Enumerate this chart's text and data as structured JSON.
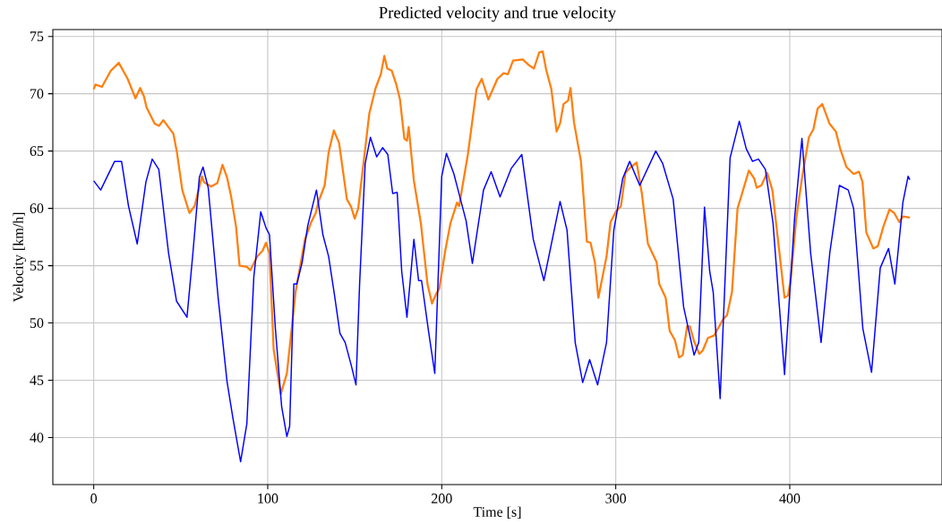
{
  "chart_data": {
    "type": "line",
    "title": "Predicted velocity and true velocity",
    "xlabel": "Time [s]",
    "ylabel": "Velocity [km/h]",
    "xlim": [
      -23.5,
      487.5
    ],
    "ylim": [
      35.9,
      75.6
    ],
    "xticks": [
      0,
      100,
      200,
      300,
      400
    ],
    "yticks": [
      40,
      45,
      50,
      55,
      60,
      65,
      70,
      75
    ],
    "grid": true,
    "series": [
      {
        "color": "#ff7f0e",
        "x": [
          0,
          1,
          4.7,
          9.8,
          14.4,
          19.5,
          24,
          26.7,
          28.8,
          30.4,
          35,
          37.5,
          40,
          45.8,
          47.8,
          50.9,
          55,
          58,
          62.2,
          63.3,
          67.4,
          71,
          74,
          76.6,
          79,
          81.8,
          83.8,
          88,
          90,
          94,
          97,
          99,
          101,
          103.4,
          107.5,
          111,
          116,
          121.4,
          125,
          127.6,
          129,
          132.7,
          135,
          138,
          141,
          145.5,
          148,
          150,
          152,
          155,
          158.4,
          162,
          165,
          167,
          168.7,
          171.3,
          173.9,
          176,
          178.5,
          180,
          181,
          184,
          188,
          191.8,
          194.4,
          197,
          198.6,
          202,
          205,
          208.8,
          210,
          215,
          220,
          223,
          226.8,
          232,
          235.6,
          238,
          241,
          246.5,
          250,
          253,
          256,
          258,
          260,
          263,
          266,
          268,
          270,
          272.6,
          274,
          276,
          280,
          283.4,
          285.5,
          288,
          290,
          294.7,
          297,
          300,
          303,
          305.6,
          308,
          312,
          315,
          318.5,
          323.5,
          325,
          328.7,
          331,
          334,
          336.4,
          338.5,
          341,
          342.6,
          345,
          348,
          350,
          353,
          356.5,
          361.6,
          364,
          366.8,
          370,
          372.4,
          376.5,
          379.6,
          381,
          383.7,
          387,
          390,
          392,
          397,
          399,
          400.7,
          403.8,
          407,
          411,
          413.6,
          416,
          418.7,
          422.8,
          426.5,
          429,
          432.6,
          436.7,
          439.8,
          441.8,
          444,
          448,
          450.6,
          454,
          457.3,
          460,
          463,
          465,
          469
        ],
        "values": [
          70.4,
          70.8,
          70.6,
          72,
          72.7,
          71.3,
          69.6,
          70.5,
          69.8,
          68.8,
          67.4,
          67.2,
          67.7,
          66.5,
          64.9,
          61.6,
          59.6,
          60.2,
          62.8,
          62.3,
          61.9,
          62.2,
          63.8,
          62.7,
          61,
          58.4,
          55,
          54.9,
          54.6,
          55.8,
          56.3,
          57,
          56.1,
          47.7,
          43.8,
          45.6,
          52.7,
          57.3,
          58.8,
          59.6,
          60.5,
          62,
          64.9,
          66.8,
          65.7,
          60.8,
          60.1,
          59.1,
          60,
          63.9,
          68.3,
          70.5,
          71.7,
          73.3,
          72.2,
          72,
          70.8,
          69.5,
          66.1,
          65.9,
          67.1,
          62.4,
          58.7,
          53.4,
          51.7,
          52.6,
          53,
          56.3,
          58.7,
          60.5,
          60.2,
          64.7,
          70.4,
          71.3,
          69.5,
          71.3,
          71.8,
          71.7,
          72.9,
          73,
          72.5,
          72.2,
          73.6,
          73.7,
          72.1,
          70.4,
          66.7,
          67.4,
          69.1,
          69.4,
          70.5,
          67.5,
          64.1,
          57.1,
          57,
          55.3,
          52.2,
          55.8,
          58.8,
          59.7,
          60.2,
          63.1,
          63.5,
          64,
          61.3,
          56.9,
          55.3,
          53.4,
          52.2,
          49.3,
          48.5,
          47,
          47.2,
          49.7,
          49.7,
          48.4,
          47.3,
          47.6,
          48.7,
          48.9,
          50.3,
          50.7,
          52.7,
          60,
          61.2,
          63.3,
          62.6,
          61.8,
          62,
          63.1,
          61.6,
          58.9,
          52.2,
          52.4,
          54,
          59.2,
          62.6,
          66.2,
          66.9,
          68.7,
          69.1,
          67.4,
          66.7,
          65.2,
          63.6,
          63,
          63.2,
          62.3,
          57.9,
          56.5,
          56.7,
          58.5,
          59.9,
          59.6,
          58.8,
          59.3,
          59.2
        ]
      },
      {
        "color": "#0000ff",
        "x": [
          0,
          4,
          12,
          16,
          20,
          25,
          30,
          33.6,
          37.4,
          43,
          47.6,
          53.6,
          57,
          60.7,
          62.8,
          65.8,
          71.5,
          76.6,
          80,
          84.4,
          88,
          92,
          96,
          99,
          101,
          104.4,
          108,
          111,
          112.6,
          115,
          116.7,
          119.8,
          123,
          128,
          131.7,
          135,
          138.4,
          141.5,
          144.5,
          148,
          150.7,
          152.8,
          156,
          159,
          162.6,
          166,
          169,
          171.8,
          174.4,
          177,
          180,
          184,
          186.7,
          188.4,
          192.4,
          196,
          200,
          202.7,
          207,
          214,
          217.6,
          224,
          228.4,
          233.5,
          240,
          246,
          252.6,
          258.7,
          268,
          272,
          276.7,
          281,
          285,
          289.6,
          294.7,
          298.9,
          304,
          308,
          313.8,
          323,
          327,
          333,
          339,
          345,
          347.7,
          351,
          354,
          356,
          360,
          365.7,
          371,
          375,
          378.6,
          382,
          386,
          390.4,
          397,
          402.8,
          407,
          412,
          418,
          423,
          428.5,
          433.6,
          436.7,
          442,
          447,
          452,
          456.8,
          460.4,
          465,
          468,
          469
        ],
        "values": [
          62.4,
          61.6,
          64.1,
          64.1,
          60.2,
          56.9,
          62.3,
          64.3,
          63.4,
          56.1,
          51.9,
          50.5,
          56.1,
          62.7,
          63.6,
          61.8,
          52.2,
          44.9,
          41.7,
          37.9,
          41.2,
          54,
          59.7,
          58.3,
          57.7,
          49.5,
          42.7,
          40.1,
          41,
          53.4,
          53.4,
          55.3,
          58.5,
          61.6,
          57.7,
          55.8,
          52.4,
          49.1,
          48.3,
          46.3,
          44.6,
          53.4,
          63.9,
          66.2,
          64.5,
          65.3,
          64.7,
          61.3,
          61.4,
          54.5,
          50.5,
          57.3,
          53.7,
          53.7,
          49.3,
          45.6,
          62.8,
          64.8,
          63,
          58.9,
          55.2,
          61.6,
          63.2,
          61,
          63.5,
          64.7,
          57.3,
          53.7,
          60.6,
          58.1,
          48.3,
          44.8,
          46.8,
          44.6,
          48.3,
          58.1,
          62.6,
          64.1,
          62,
          65,
          63.9,
          60.8,
          51.4,
          47.2,
          48.3,
          60.1,
          54.5,
          52.7,
          43.4,
          64.4,
          67.6,
          65.2,
          64.1,
          64.3,
          63.4,
          58.7,
          45.5,
          59.2,
          66.1,
          56.1,
          48.3,
          56.1,
          62,
          61.6,
          60,
          49.5,
          45.7,
          54.8,
          56.5,
          53.4,
          60.5,
          62.8,
          62.5
        ]
      }
    ]
  }
}
